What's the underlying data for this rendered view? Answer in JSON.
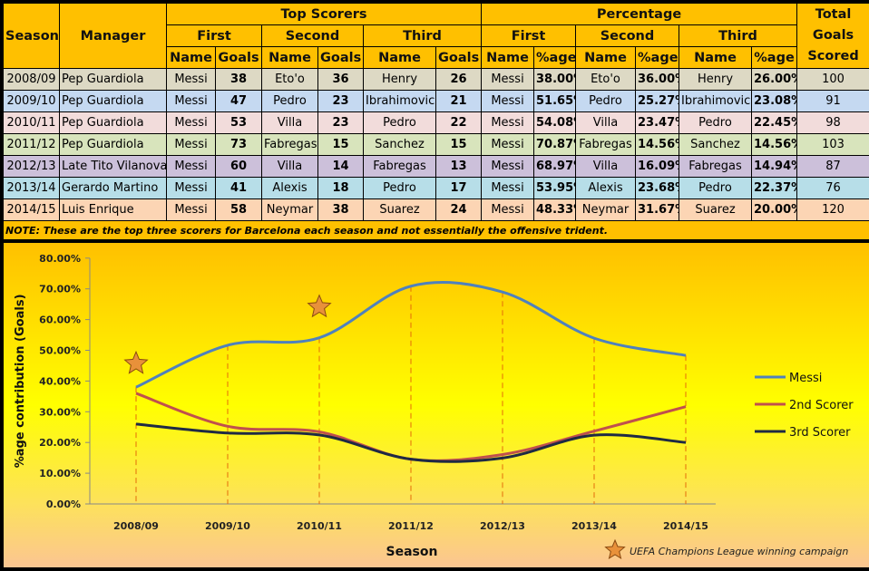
{
  "table": {
    "headers": {
      "season": "Season",
      "manager": "Manager",
      "top_scorers": "Top Scorers",
      "percentage": "Percentage",
      "total": "Total Goals Scored",
      "first": "First",
      "second": "Second",
      "third": "Third",
      "name": "Name",
      "goals": "Goals",
      "pct": "%age"
    },
    "rows": [
      {
        "season": "2008/09",
        "manager": "Pep Guardiola",
        "n1": "Messi",
        "g1": "38",
        "n2": "Eto'o",
        "g2": "36",
        "n3": "Henry",
        "g3": "26",
        "p1": "38.00%",
        "p2": "36.00%",
        "p3": "26.00%",
        "total": "100",
        "color": "#ddd9c4"
      },
      {
        "season": "2009/10",
        "manager": "Pep Guardiola",
        "n1": "Messi",
        "g1": "47",
        "n2": "Pedro",
        "g2": "23",
        "n3": "Ibrahimovic",
        "g3": "21",
        "p1": "51.65%",
        "p2": "25.27%",
        "p3": "23.08%",
        "total": "91",
        "color": "#c5d9f1"
      },
      {
        "season": "2010/11",
        "manager": "Pep Guardiola",
        "n1": "Messi",
        "g1": "53",
        "n2": "Villa",
        "g2": "23",
        "n3": "Pedro",
        "g3": "22",
        "p1": "54.08%",
        "p2": "23.47%",
        "p3": "22.45%",
        "total": "98",
        "color": "#f2dcdb"
      },
      {
        "season": "2011/12",
        "manager": "Pep Guardiola",
        "n1": "Messi",
        "g1": "73",
        "n2": "Fabregas",
        "g2": "15",
        "n3": "Sanchez",
        "g3": "15",
        "p1": "70.87%",
        "p2": "14.56%",
        "p3": "14.56%",
        "total": "103",
        "color": "#d8e4bc"
      },
      {
        "season": "2012/13",
        "manager": "Late Tito Vilanova",
        "n1": "Messi",
        "g1": "60",
        "n2": "Villa",
        "g2": "14",
        "n3": "Fabregas",
        "g3": "13",
        "p1": "68.97%",
        "p2": "16.09%",
        "p3": "14.94%",
        "total": "87",
        "color": "#ccc0da"
      },
      {
        "season": "2013/14",
        "manager": "Gerardo Martino",
        "n1": "Messi",
        "g1": "41",
        "n2": "Alexis",
        "g2": "18",
        "n3": "Pedro",
        "g3": "17",
        "p1": "53.95%",
        "p2": "23.68%",
        "p3": "22.37%",
        "total": "76",
        "color": "#b7dee8"
      },
      {
        "season": "2014/15",
        "manager": "Luis Enrique",
        "n1": "Messi",
        "g1": "58",
        "n2": "Neymar",
        "g2": "38",
        "n3": "Suarez",
        "g3": "24",
        "p1": "48.33%",
        "p2": "31.67%",
        "p3": "20.00%",
        "total": "120",
        "color": "#fcd5b4"
      }
    ],
    "note": "NOTE: These are the top three scorers for Barcelona each season and not essentially the offensive trident."
  },
  "chart_data": {
    "type": "line",
    "title": "",
    "xlabel": "Season",
    "ylabel": "%age contribution (Goals)",
    "ylim": [
      0,
      80
    ],
    "yticks": [
      "0.00%",
      "10.00%",
      "20.00%",
      "30.00%",
      "40.00%",
      "50.00%",
      "60.00%",
      "70.00%",
      "80.00%"
    ],
    "categories": [
      "2008/09",
      "2009/10",
      "2010/11",
      "2011/12",
      "2012/13",
      "2013/14",
      "2014/15"
    ],
    "series": [
      {
        "name": "Messi",
        "color": "#4f81bd",
        "values": [
          38.0,
          51.65,
          54.08,
          70.87,
          68.97,
          53.95,
          48.33
        ]
      },
      {
        "name": "2nd Scorer",
        "color": "#c0504d",
        "values": [
          36.0,
          25.27,
          23.47,
          14.56,
          16.09,
          23.68,
          31.67
        ]
      },
      {
        "name": "3rd Scorer",
        "color": "#1f2a44",
        "values": [
          26.0,
          23.08,
          22.45,
          14.56,
          14.94,
          22.37,
          20.0
        ]
      }
    ],
    "legend_position": "right",
    "stars": {
      "seasons": [
        "2008/09",
        "2010/11"
      ],
      "label": "UEFA Champions League winning campaign"
    }
  }
}
